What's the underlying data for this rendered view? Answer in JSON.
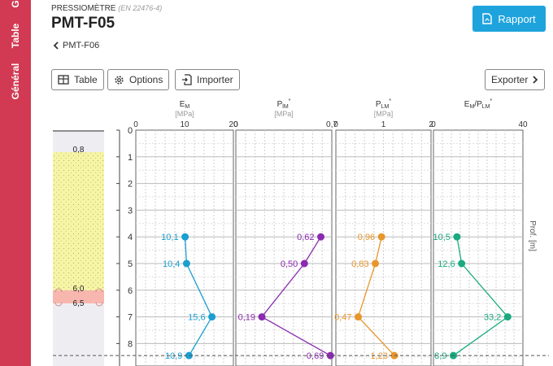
{
  "sidebar": {
    "tabs": [
      {
        "label": "G"
      },
      {
        "label": "Table"
      },
      {
        "label": "Général"
      }
    ]
  },
  "header": {
    "subtitle": "PRESSIOMÈTRE",
    "standard": "(EN 22476-4)",
    "title": "PMT-F05",
    "back_label": "PMT-F06",
    "report_button": "Rapport"
  },
  "toolbar": {
    "table_label": "Table",
    "options_label": "Options",
    "import_label": "Importer",
    "export_label": "Exporter"
  },
  "strata": {
    "boundaries": [
      {
        "label": "0,8"
      },
      {
        "label": "6,0"
      },
      {
        "label": "6,5"
      }
    ]
  },
  "depth_axis": {
    "ticks": [
      "0",
      "1",
      "2",
      "3",
      "4",
      "5",
      "6",
      "7",
      "8"
    ],
    "label": "Prof. [m]"
  },
  "chart_data": {
    "type": "line",
    "depth": [
      4,
      5,
      7,
      8.45
    ],
    "panels": [
      {
        "key": "em",
        "title": "E",
        "sub": "M",
        "sup": "",
        "unit": "[MPa]",
        "xlim": [
          0,
          20
        ],
        "ticks": [
          "0",
          "10",
          "20"
        ],
        "color": "#1a9fd0",
        "values": [
          10.1,
          10.4,
          15.6,
          10.9
        ],
        "labels": [
          "10,1",
          "10,4",
          "15,6",
          "10,9"
        ]
      },
      {
        "key": "pl_star",
        "title": "P",
        "sub": "lM",
        "sup": "*",
        "unit": "[MPa]",
        "xlim": [
          0,
          0.7
        ],
        "ticks": [
          "0",
          "",
          "0,7"
        ],
        "color": "#8a2bb0",
        "values": [
          0.62,
          0.5,
          0.19,
          0.69
        ],
        "labels": [
          "0,62",
          "0,50",
          "0,19",
          "0,69"
        ]
      },
      {
        "key": "plm_star",
        "title": "P",
        "sub": "LM",
        "sup": "*",
        "unit": "[MPa]",
        "xlim": [
          0,
          2
        ],
        "ticks": [
          "0",
          "1",
          "2"
        ],
        "color": "#e8962b",
        "values": [
          0.96,
          0.83,
          0.47,
          1.23
        ],
        "labels": [
          "0,96",
          "0,83",
          "0,47",
          "1,23"
        ]
      },
      {
        "key": "ratio",
        "title": "E",
        "sub": "M",
        "sup": "",
        "title2": "/P",
        "sub2": "LM",
        "sup2": "*",
        "unit": "",
        "xlim": [
          0,
          40
        ],
        "ticks": [
          "0",
          "",
          "40"
        ],
        "color": "#1aaa80",
        "values": [
          10.5,
          12.6,
          33.2,
          8.9
        ],
        "labels": [
          "10,5",
          "12,6",
          "33,2",
          "8,9"
        ]
      }
    ]
  }
}
